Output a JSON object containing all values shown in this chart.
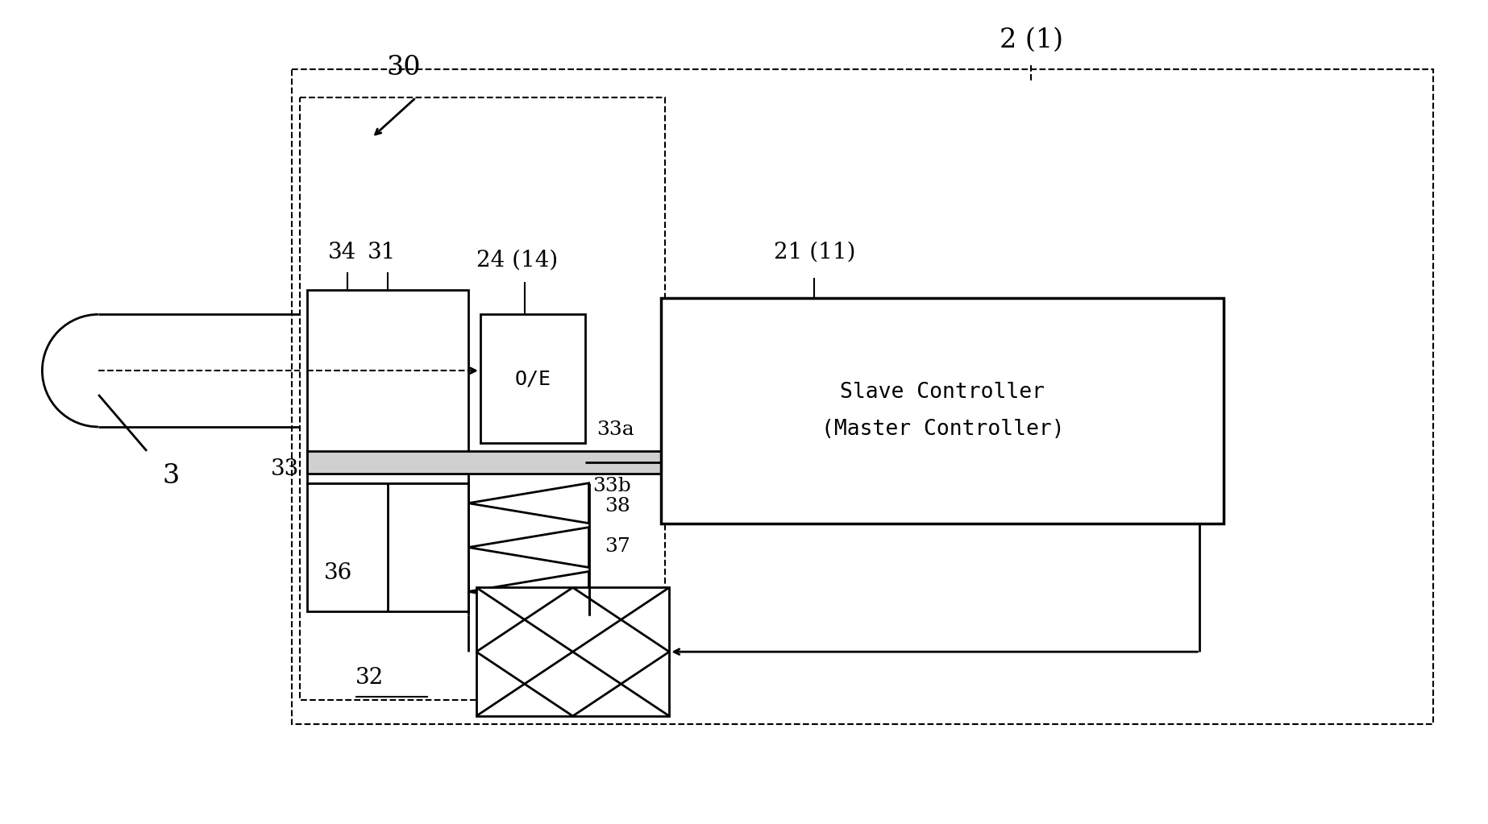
{
  "bg_color": "#ffffff",
  "line_color": "#000000",
  "fig_width": 18.46,
  "fig_height": 10.23,
  "dpi": 100,
  "labels": {
    "2_1": "2 (1)",
    "21_11": "21 (11)",
    "24_14": "24 (14)",
    "30": "30",
    "31": "31",
    "32": "32",
    "33": "33",
    "33a": "33a",
    "33b": "33b",
    "34": "34",
    "36": "36",
    "37": "37",
    "38": "38",
    "3": "3",
    "OE": "O/E",
    "slave": "Slave Controller\n(Master Controller)"
  }
}
